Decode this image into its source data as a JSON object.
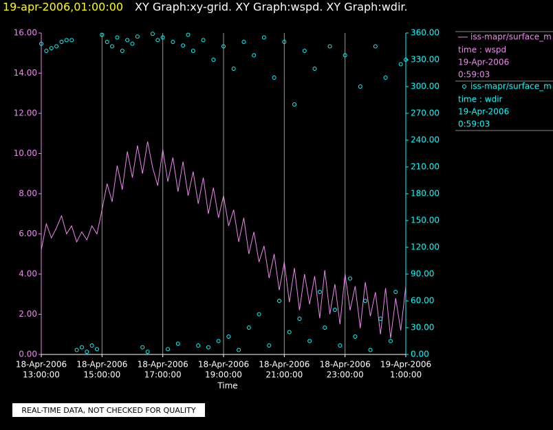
{
  "chart_data": {
    "type": "line",
    "timestamp": "19-apr-2006,01:00:00",
    "title": "XY Graph:xy-grid.  XY Graph:wspd.  XY Graph:wdir.",
    "x_label": "Time",
    "footer": "REAL-TIME DATA, NOT CHECKED FOR QUALITY",
    "grid": true,
    "xlim": [
      "2006-04-18T13:00:00",
      "2006-04-19T01:00:00"
    ],
    "xticks": [
      {
        "value": "2006-04-18T13:00:00",
        "label": [
          "18-Apr-2006",
          "13:00:00"
        ]
      },
      {
        "value": "2006-04-18T15:00:00",
        "label": [
          "18-Apr-2006",
          "15:00:00"
        ]
      },
      {
        "value": "2006-04-18T17:00:00",
        "label": [
          "18-Apr-2006",
          "17:00:00"
        ]
      },
      {
        "value": "2006-04-18T19:00:00",
        "label": [
          "18-Apr-2006",
          "19:00:00"
        ]
      },
      {
        "value": "2006-04-18T21:00:00",
        "label": [
          "18-Apr-2006",
          "21:00:00"
        ]
      },
      {
        "value": "2006-04-18T23:00:00",
        "label": [
          "18-Apr-2006",
          "23:00:00"
        ]
      },
      {
        "value": "2006-04-19T01:00:00",
        "label": [
          "19-Apr-2006",
          "1:00:00"
        ]
      }
    ],
    "ylim": [
      0,
      16
    ],
    "yticks": [
      {
        "value": 0,
        "label": "0.00"
      },
      {
        "value": 2,
        "label": "2.00"
      },
      {
        "value": 4,
        "label": "4.00"
      },
      {
        "value": 6,
        "label": "6.00"
      },
      {
        "value": 8,
        "label": "8.00"
      },
      {
        "value": 10,
        "label": "10.00"
      },
      {
        "value": 12,
        "label": "12.00"
      },
      {
        "value": 14,
        "label": "14.00"
      },
      {
        "value": 16,
        "label": "16.00"
      }
    ],
    "y2lim": [
      0,
      360
    ],
    "y2ticks": [
      {
        "value": 0,
        "label": "0.00"
      },
      {
        "value": 30,
        "label": "30.00"
      },
      {
        "value": 60,
        "label": "60.00"
      },
      {
        "value": 90,
        "label": "90.00"
      },
      {
        "value": 120,
        "label": "120.00"
      },
      {
        "value": 150,
        "label": "150.00"
      },
      {
        "value": 180,
        "label": "180.00"
      },
      {
        "value": 210,
        "label": "210.00"
      },
      {
        "value": 240,
        "label": "240.00"
      },
      {
        "value": 270,
        "label": "270.00"
      },
      {
        "value": 300,
        "label": "300.00"
      },
      {
        "value": 330,
        "label": "330.00"
      },
      {
        "value": 360,
        "label": "360.00"
      }
    ],
    "x": [
      "2006-04-18T13:00:00",
      "2006-04-18T13:10:00",
      "2006-04-18T13:20:00",
      "2006-04-18T13:30:00",
      "2006-04-18T13:40:00",
      "2006-04-18T13:50:00",
      "2006-04-18T14:00:00",
      "2006-04-18T14:10:00",
      "2006-04-18T14:20:00",
      "2006-04-18T14:30:00",
      "2006-04-18T14:40:00",
      "2006-04-18T14:50:00",
      "2006-04-18T15:00:00",
      "2006-04-18T15:10:00",
      "2006-04-18T15:20:00",
      "2006-04-18T15:30:00",
      "2006-04-18T15:40:00",
      "2006-04-18T15:50:00",
      "2006-04-18T16:00:00",
      "2006-04-18T16:10:00",
      "2006-04-18T16:20:00",
      "2006-04-18T16:30:00",
      "2006-04-18T16:40:00",
      "2006-04-18T16:50:00",
      "2006-04-18T17:00:00",
      "2006-04-18T17:10:00",
      "2006-04-18T17:20:00",
      "2006-04-18T17:30:00",
      "2006-04-18T17:40:00",
      "2006-04-18T17:50:00",
      "2006-04-18T18:00:00",
      "2006-04-18T18:10:00",
      "2006-04-18T18:20:00",
      "2006-04-18T18:30:00",
      "2006-04-18T18:40:00",
      "2006-04-18T18:50:00",
      "2006-04-18T19:00:00",
      "2006-04-18T19:10:00",
      "2006-04-18T19:20:00",
      "2006-04-18T19:30:00",
      "2006-04-18T19:40:00",
      "2006-04-18T19:50:00",
      "2006-04-18T20:00:00",
      "2006-04-18T20:10:00",
      "2006-04-18T20:20:00",
      "2006-04-18T20:30:00",
      "2006-04-18T20:40:00",
      "2006-04-18T20:50:00",
      "2006-04-18T21:00:00",
      "2006-04-18T21:10:00",
      "2006-04-18T21:20:00",
      "2006-04-18T21:30:00",
      "2006-04-18T21:40:00",
      "2006-04-18T21:50:00",
      "2006-04-18T22:00:00",
      "2006-04-18T22:10:00",
      "2006-04-18T22:20:00",
      "2006-04-18T22:30:00",
      "2006-04-18T22:40:00",
      "2006-04-18T22:50:00",
      "2006-04-18T23:00:00",
      "2006-04-18T23:10:00",
      "2006-04-18T23:20:00",
      "2006-04-18T23:30:00",
      "2006-04-18T23:40:00",
      "2006-04-18T23:50:00",
      "2006-04-19T00:00:00",
      "2006-04-19T00:10:00",
      "2006-04-19T00:20:00",
      "2006-04-19T00:30:00",
      "2006-04-19T00:40:00",
      "2006-04-19T00:50:00",
      "2006-04-19T01:00:00"
    ],
    "series": [
      {
        "name": "iss-mapr/surface_m",
        "legend_lines": [
          "time : wspd",
          "19-Apr-2006",
          "0:59:03"
        ],
        "color": "#ee88ee",
        "mark": "line",
        "axis": "y",
        "values": [
          5.2,
          6.5,
          5.8,
          6.3,
          6.9,
          6.0,
          6.4,
          5.6,
          6.1,
          5.7,
          6.4,
          6.0,
          7.2,
          8.5,
          7.6,
          9.4,
          8.2,
          10.1,
          8.8,
          10.4,
          9.0,
          10.6,
          9.3,
          8.4,
          10.2,
          8.6,
          9.8,
          8.1,
          9.6,
          7.9,
          9.1,
          7.5,
          8.8,
          7.0,
          8.3,
          6.8,
          7.9,
          6.4,
          7.2,
          5.6,
          6.8,
          5.0,
          6.1,
          4.6,
          5.4,
          3.8,
          5.0,
          3.2,
          4.6,
          2.6,
          4.3,
          2.2,
          4.0,
          2.5,
          3.9,
          1.8,
          4.2,
          2.0,
          3.5,
          1.5,
          4.0,
          2.2,
          3.4,
          1.3,
          3.6,
          1.9,
          3.1,
          1.0,
          3.3,
          0.8,
          2.8,
          1.2,
          3.4
        ]
      },
      {
        "name": "iss-mapr/surface_m",
        "legend_lines": [
          "time : wdir",
          "19-Apr-2006",
          "0:59:03"
        ],
        "color": "#00ffff",
        "mark": "circle",
        "axis": "y2",
        "values": [
          348,
          340,
          343,
          345,
          350,
          352,
          352,
          5,
          8,
          3,
          10,
          6,
          358,
          350,
          345,
          355,
          340,
          352,
          348,
          356,
          8,
          3,
          359,
          352,
          355,
          6,
          350,
          12,
          346,
          358,
          340,
          10,
          352,
          8,
          330,
          15,
          345,
          20,
          320,
          5,
          350,
          30,
          335,
          45,
          355,
          10,
          310,
          60,
          350,
          25,
          280,
          40,
          340,
          15,
          320,
          70,
          30,
          345,
          50,
          10,
          335,
          85,
          20,
          300,
          60,
          5,
          345,
          40,
          310,
          15,
          70,
          325,
          330
        ]
      }
    ]
  }
}
